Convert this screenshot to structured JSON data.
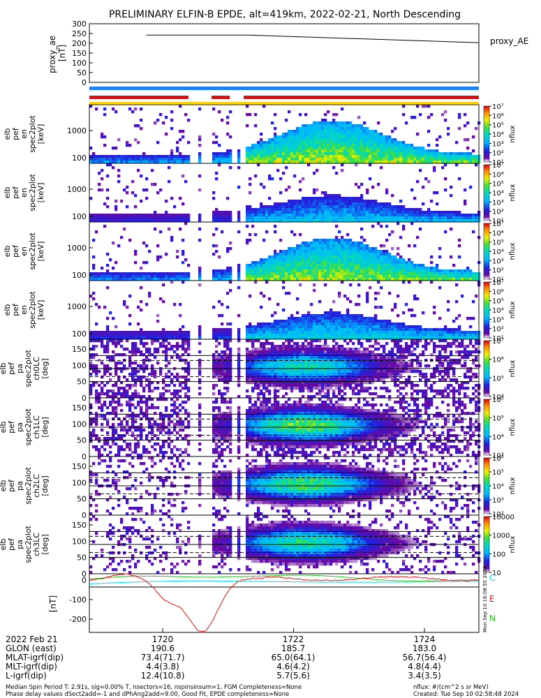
{
  "title": "PRELIMINARY ELFIN-B EPDE, alt=419km, 2022-02-21, North Descending",
  "colors": {
    "ae_line": "#000000",
    "bar_blue": "#1e7fff",
    "bar_red": "#e01010",
    "bar_yellow": "#ffd400",
    "b_cyan": "#00d8e8",
    "b_red": "#e01010",
    "b_green": "#22c422"
  },
  "chart_data": [
    {
      "id": "proxy_ae",
      "type": "line",
      "ylabel": "proxy_ae\n[nT]",
      "legend": "proxy_AE",
      "ylim": [
        0,
        300
      ],
      "yticks": [
        "300",
        "250",
        "200",
        "150",
        "100",
        "50",
        "0"
      ],
      "series": [
        {
          "name": "proxy_AE",
          "x": [
            1719.75,
            1721.3,
            1725.4
          ],
          "values": [
            242,
            242,
            203
          ]
        }
      ]
    },
    {
      "id": "spec_en_1",
      "type": "heatmap",
      "ylabel": "elb\npef\nen\nspec2plot\n[keV]",
      "yticks": [
        "1000",
        "100"
      ],
      "colorbar_label": "nflux",
      "colorbar_ticks": [
        "10⁷",
        "10⁶",
        "10⁵",
        "10⁴",
        "10³",
        "10²",
        "10¹"
      ]
    },
    {
      "id": "spec_en_2",
      "type": "heatmap",
      "ylabel": "elb\npef\nen\nspec2plot\n[keV]",
      "yticks": [
        "1000",
        "100"
      ],
      "colorbar_label": "nflux",
      "colorbar_ticks": [
        "10⁷",
        "10⁶",
        "10⁵",
        "10⁴",
        "10³",
        "10²",
        "10¹"
      ]
    },
    {
      "id": "spec_en_3",
      "type": "heatmap",
      "ylabel": "elb\npef\nen\nspec2plot\n[keV]",
      "yticks": [
        "1000",
        "100"
      ],
      "colorbar_label": "nflux",
      "colorbar_ticks": [
        "10⁷",
        "10⁶",
        "10⁵",
        "10⁴",
        "10³",
        "10²",
        "10¹"
      ]
    },
    {
      "id": "spec_en_4",
      "type": "heatmap",
      "ylabel": "elb\npef\nen\nspec2plot\n[keV]",
      "yticks": [
        "1000",
        "100"
      ],
      "colorbar_label": "nflux",
      "colorbar_ticks": [
        "10⁷",
        "10⁶",
        "10⁵",
        "10⁴",
        "10³",
        "10²",
        "10¹"
      ]
    },
    {
      "id": "spec_pa_0",
      "type": "heatmap",
      "ylabel": "elb\npef\npa\nspec2plot\nch0LC\n[deg]",
      "yticks": [
        "150",
        "100",
        "50",
        "0"
      ],
      "colorbar_label": "nflux",
      "colorbar_ticks": [
        "10⁷",
        "10⁶",
        "10⁵",
        "10⁴"
      ]
    },
    {
      "id": "spec_pa_1",
      "type": "heatmap",
      "ylabel": "elb\npef\npa\nspec2plot\nch1LC\n[deg]",
      "yticks": [
        "150",
        "100",
        "50",
        "0"
      ],
      "colorbar_label": "nflux",
      "colorbar_ticks": [
        "10⁶",
        "10⁵",
        "10⁴",
        "10³"
      ]
    },
    {
      "id": "spec_pa_2",
      "type": "heatmap",
      "ylabel": "elb\npef\npa\nspec2plot\nch2LC\n[deg]",
      "yticks": [
        "150",
        "100",
        "50",
        "0"
      ],
      "colorbar_label": "nflux",
      "colorbar_ticks": [
        "10⁶",
        "10⁵",
        "10⁴",
        "10³",
        "10²"
      ]
    },
    {
      "id": "spec_pa_3",
      "type": "heatmap",
      "ylabel": "elb\npef\npa\nspec2plot\nch3LC\n[deg]",
      "yticks": [
        "150",
        "100",
        "50",
        "0"
      ],
      "colorbar_label": "nflux",
      "colorbar_ticks": [
        "10000",
        "1000",
        "100",
        "10"
      ]
    },
    {
      "id": "b_field",
      "type": "line",
      "ylabel": "[nT]",
      "ylim": [
        -250,
        50
      ],
      "yticks": [
        "0",
        "-100",
        "-200"
      ],
      "legend": [
        "C",
        "E",
        "N"
      ]
    }
  ],
  "xaxis": {
    "date_label": "2022 Feb 21",
    "ticks": [
      "1720",
      "1722",
      "1724"
    ],
    "rows": [
      {
        "label": "GLON (east)",
        "values": [
          "190.6",
          "185.7",
          "183.0"
        ]
      },
      {
        "label": "MLAT-igrf(dip)",
        "values": [
          "73.4(71.7)",
          "65.0(64.1)",
          "56.7(56.4)"
        ]
      },
      {
        "label": "MLT-igrf(dip)",
        "values": [
          "4.4(3.8)",
          "4.6(4.2)",
          "4.8(4.4)"
        ]
      },
      {
        "label": "L-igrf(dip)",
        "values": [
          "12.4(10.8)",
          "5.7(5.6)",
          "3.4(3.5)"
        ]
      }
    ]
  },
  "side_stamp": "Mon Sep 10 16:08:55 2024",
  "footer": {
    "left1": "Median Spin Period T: 2.91s, sig=0.00% T, nsectors=16, nspinsinsum=1, FGM Completeness=None",
    "left2": "Phase delay values dSect2add=-1 and dPhAng2add=9.00, Good Fit, EPDE completeness=None",
    "right1": "nflux: #/(cm^2 s sr MeV)",
    "right2": "Created: Tue Sep 10 02:58:48 2024"
  }
}
